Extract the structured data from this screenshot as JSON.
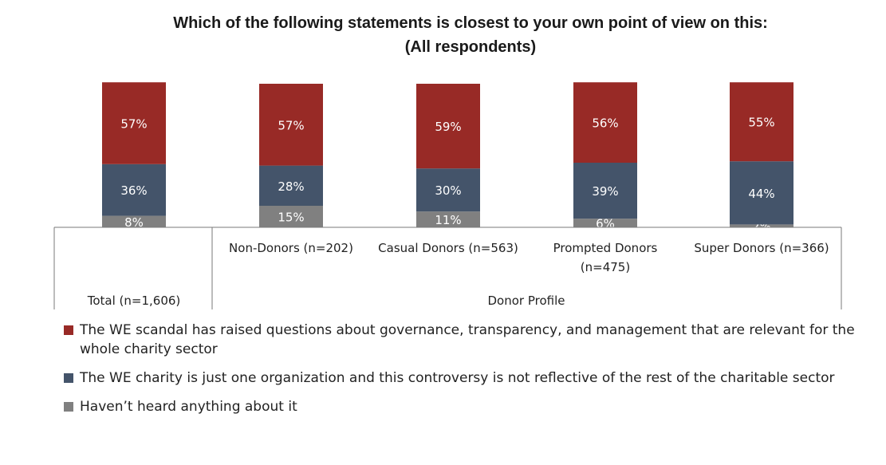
{
  "chart_data": {
    "type": "bar",
    "stacked": true,
    "title": "Which of the following statements is closest to your own point of view on this:",
    "subtitle": "(All respondents)",
    "categories": [
      "Total (n=1,606)",
      "Non-Donors (n=202)",
      "Casual Donors (n=563)",
      "Prompted Donors (n=475)",
      "Super Donors (n=366)"
    ],
    "group_label": "Donor Profile",
    "series": [
      {
        "name": "Haven’t heard anything about it",
        "color": "#808080",
        "values": [
          8,
          15,
          11,
          6,
          2
        ]
      },
      {
        "name": "The WE charity is just one organization and this controversy is not reflective of the rest of the charitable sector",
        "color": "#44546a",
        "values": [
          36,
          28,
          30,
          39,
          44
        ]
      },
      {
        "name": "The WE scandal has raised questions about governance, transparency, and management that are relevant for the whole charity sector",
        "color": "#982a26",
        "values": [
          57,
          57,
          59,
          56,
          55
        ]
      }
    ],
    "value_format": "{v}%",
    "ylim": [
      0,
      100
    ],
    "grid": false,
    "legend_position": "bottom"
  }
}
